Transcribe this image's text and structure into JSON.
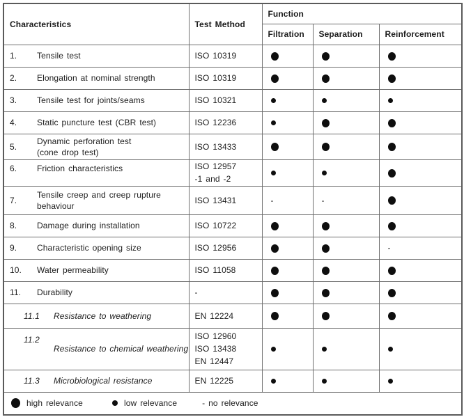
{
  "table": {
    "header": {
      "characteristics": "Characteristics",
      "test_method": "Test Method",
      "function_group": "Function",
      "filtration": "Filtration",
      "separation": "Separation",
      "reinforcement": "Reinforcement"
    },
    "rows": [
      {
        "num": "1.",
        "name": [
          "Tensile test"
        ],
        "method": [
          "ISO 10319"
        ],
        "relevance": {
          "filtration": "high",
          "separation": "high",
          "reinforcement": "high"
        }
      },
      {
        "num": "2.",
        "name": [
          "Elongation at nominal strength"
        ],
        "method": [
          "ISO 10319"
        ],
        "relevance": {
          "filtration": "high",
          "separation": "high",
          "reinforcement": "high"
        }
      },
      {
        "num": "3.",
        "name": [
          "Tensile test for joints/seams"
        ],
        "method": [
          "ISO 10321"
        ],
        "relevance": {
          "filtration": "low",
          "separation": "low",
          "reinforcement": "low"
        }
      },
      {
        "num": "4.",
        "name": [
          "Static puncture test (CBR test)"
        ],
        "method": [
          "ISO 12236"
        ],
        "relevance": {
          "filtration": "low",
          "separation": "high",
          "reinforcement": "high"
        }
      },
      {
        "num": "5.",
        "name": [
          "Dynamic perforation test",
          "(cone drop test)"
        ],
        "method": [
          "ISO 13433"
        ],
        "relevance": {
          "filtration": "high",
          "separation": "high",
          "reinforcement": "high"
        }
      },
      {
        "num": "6.",
        "name": [
          "Friction characteristics"
        ],
        "method": [
          "ISO 12957",
          "-1 and -2"
        ],
        "relevance": {
          "filtration": "low",
          "separation": "low",
          "reinforcement": "high"
        }
      },
      {
        "num": "7.",
        "name": [
          "Tensile creep and creep rupture",
          "behaviour"
        ],
        "method": [
          "ISO 13431"
        ],
        "relevance": {
          "filtration": "none",
          "separation": "none",
          "reinforcement": "high"
        }
      },
      {
        "num": "8.",
        "name": [
          "Damage during installation"
        ],
        "method": [
          "ISO 10722"
        ],
        "relevance": {
          "filtration": "high",
          "separation": "high",
          "reinforcement": "high"
        }
      },
      {
        "num": "9.",
        "name": [
          "Characteristic opening size"
        ],
        "method": [
          "ISO 12956"
        ],
        "relevance": {
          "filtration": "high",
          "separation": "high",
          "reinforcement": "none"
        }
      },
      {
        "num": "10.",
        "name": [
          "Water permeability"
        ],
        "method": [
          "ISO 11058"
        ],
        "relevance": {
          "filtration": "high",
          "separation": "high",
          "reinforcement": "high"
        }
      },
      {
        "num": "11.",
        "name": [
          "Durability"
        ],
        "method": [
          "-"
        ],
        "relevance": {
          "filtration": "high",
          "separation": "high",
          "reinforcement": "high"
        }
      },
      {
        "num": "11.1",
        "name": [
          "Resistance to weathering"
        ],
        "method": [
          "EN 12224"
        ],
        "relevance": {
          "filtration": "high",
          "separation": "high",
          "reinforcement": "high"
        }
      },
      {
        "num": "11.2",
        "name": [
          "Resistance to chemical weathering"
        ],
        "method": [
          "ISO 12960",
          "ISO 13438",
          "EN 12447"
        ],
        "relevance": {
          "filtration": "low",
          "separation": "low",
          "reinforcement": "low"
        }
      },
      {
        "num": "11.3",
        "name": [
          "Microbiological resistance"
        ],
        "method": [
          "EN 12225"
        ],
        "relevance": {
          "filtration": "low",
          "separation": "low",
          "reinforcement": "low"
        }
      }
    ]
  },
  "marks": {
    "none_symbol": "-"
  },
  "legend": {
    "high_label": "high relevance",
    "low_label": "low relevance",
    "none_label": "- no relevance"
  }
}
